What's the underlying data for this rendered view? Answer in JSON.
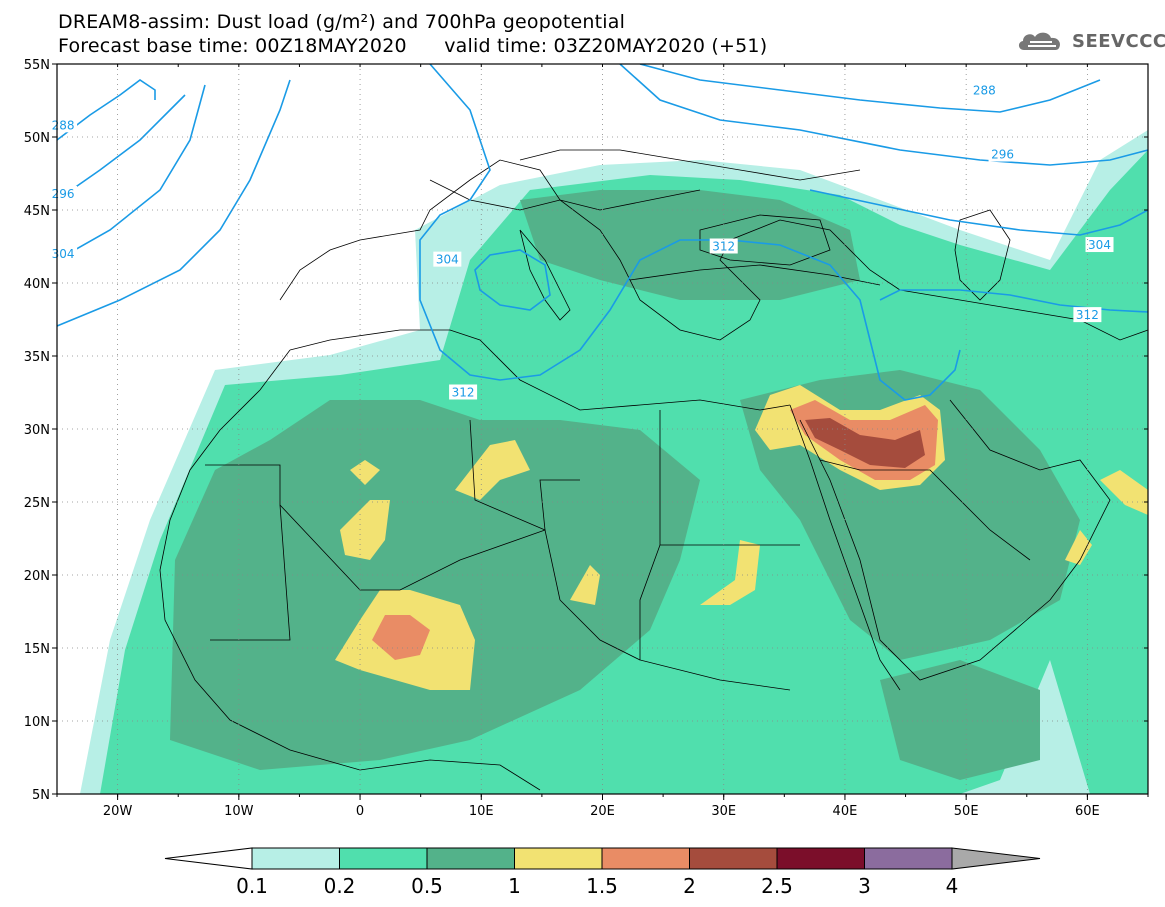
{
  "title": {
    "line1": "DREAM8-assim: Dust load (g/m²) and 700hPa geopotential",
    "line2": "Forecast base time: 00Z18MAY2020      valid time: 03Z20MAY2020 (+51)"
  },
  "logo": {
    "text": "SEEVCCC",
    "icon": "cloud-logo-icon"
  },
  "axes": {
    "lon_range": [
      -25,
      65
    ],
    "lat_range": [
      5,
      55
    ],
    "x_ticks": [
      {
        "value": -20,
        "label": "20W"
      },
      {
        "value": -10,
        "label": "10W"
      },
      {
        "value": 0,
        "label": "0"
      },
      {
        "value": 10,
        "label": "10E"
      },
      {
        "value": 20,
        "label": "20E"
      },
      {
        "value": 30,
        "label": "30E"
      },
      {
        "value": 40,
        "label": "40E"
      },
      {
        "value": 50,
        "label": "50E"
      },
      {
        "value": 60,
        "label": "60E"
      }
    ],
    "y_ticks": [
      {
        "value": 55,
        "label": "55N"
      },
      {
        "value": 50,
        "label": "50N"
      },
      {
        "value": 45,
        "label": "45N"
      },
      {
        "value": 40,
        "label": "40N"
      },
      {
        "value": 35,
        "label": "35N"
      },
      {
        "value": 30,
        "label": "30N"
      },
      {
        "value": 25,
        "label": "25N"
      },
      {
        "value": 20,
        "label": "20N"
      },
      {
        "value": 15,
        "label": "15N"
      },
      {
        "value": 10,
        "label": "10N"
      },
      {
        "value": 5,
        "label": "5N"
      }
    ],
    "grid": "dotted"
  },
  "colorbar": {
    "levels": [
      "0.1",
      "0.2",
      "0.5",
      "1",
      "1.5",
      "2",
      "2.5",
      "3",
      "4"
    ],
    "colors": [
      "#ffffff",
      "#b7efe6",
      "#50dfad",
      "#53b28a",
      "#f2e272",
      "#e98c65",
      "#a54c3d",
      "#7b0e2a",
      "#8b6c9e",
      "#a9a9a9"
    ]
  },
  "geopotential_labels": [
    {
      "text": "288",
      "lon": -24.5,
      "lat": 50.8
    },
    {
      "text": "296",
      "lon": -24.5,
      "lat": 46.1
    },
    {
      "text": "304",
      "lon": -24.5,
      "lat": 42.0
    },
    {
      "text": "304",
      "lon": 7.2,
      "lat": 41.6
    },
    {
      "text": "312",
      "lon": 30.0,
      "lat": 42.5
    },
    {
      "text": "312",
      "lon": 8.5,
      "lat": 32.5
    },
    {
      "text": "288",
      "lon": 51.5,
      "lat": 53.2
    },
    {
      "text": "296",
      "lon": 53.0,
      "lat": 48.8
    },
    {
      "text": "304",
      "lon": 61.0,
      "lat": 42.6
    },
    {
      "text": "312",
      "lon": 60.0,
      "lat": 37.8
    }
  ]
}
